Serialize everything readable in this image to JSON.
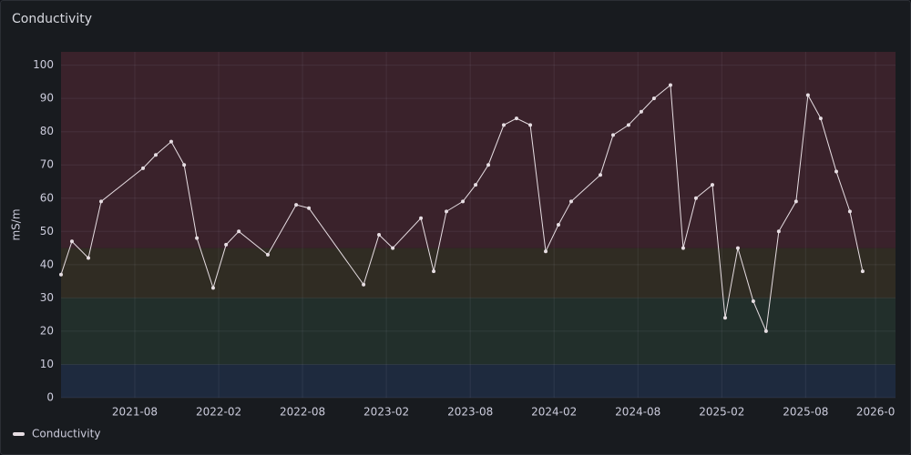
{
  "chart_data": {
    "type": "line",
    "title": "Conductivity",
    "y_label": "mS/m",
    "x": [
      2021.143,
      2021.208,
      2021.306,
      2021.382,
      2021.632,
      2021.708,
      2021.8,
      2021.877,
      2021.953,
      2022.05,
      2022.127,
      2022.203,
      2022.376,
      2022.545,
      2022.621,
      2022.947,
      2023.039,
      2023.121,
      2023.289,
      2023.365,
      2023.441,
      2023.539,
      2023.615,
      2023.691,
      2023.783,
      2023.859,
      2023.941,
      2024.033,
      2024.109,
      2024.185,
      2024.359,
      2024.435,
      2024.527,
      2024.603,
      2024.679,
      2024.777,
      2024.853,
      2024.929,
      2025.027,
      2025.103,
      2025.179,
      2025.271,
      2025.347,
      2025.423,
      2025.526,
      2025.597,
      2025.673,
      2025.766,
      2025.847,
      2025.923
    ],
    "series": [
      {
        "name": "Conductivity",
        "color": "#e6dde2",
        "values": [
          37,
          47,
          42,
          59,
          69,
          73,
          77,
          70,
          48,
          33,
          46,
          50,
          43,
          58,
          57,
          34,
          49,
          45,
          54,
          38,
          56,
          59,
          64,
          70,
          82,
          84,
          82,
          44,
          52,
          59,
          67,
          79,
          82,
          86,
          90,
          94,
          45,
          60,
          64,
          24,
          45,
          29,
          20,
          50,
          59,
          91,
          84,
          68,
          56,
          38
        ]
      }
    ],
    "xlim": [
      2021.143,
      2026.119
    ],
    "xticks": [
      {
        "value": 2021.583,
        "label": "2021-08"
      },
      {
        "value": 2022.083,
        "label": "2022-02"
      },
      {
        "value": 2022.583,
        "label": "2022-08"
      },
      {
        "value": 2023.083,
        "label": "2023-02"
      },
      {
        "value": 2023.583,
        "label": "2023-08"
      },
      {
        "value": 2024.083,
        "label": "2024-02"
      },
      {
        "value": 2024.583,
        "label": "2024-08"
      },
      {
        "value": 2025.083,
        "label": "2025-02"
      },
      {
        "value": 2025.583,
        "label": "2025-08"
      },
      {
        "value": 2026.0,
        "label": "2026-0"
      }
    ],
    "ylim": [
      0,
      104
    ],
    "yticks": [
      0,
      10,
      20,
      30,
      40,
      50,
      60,
      70,
      80,
      90,
      100
    ],
    "grid": true,
    "thresholds": [
      {
        "value": 0,
        "color": "#1e2a3e"
      },
      {
        "value": 10,
        "color": "#222f2b"
      },
      {
        "value": 30,
        "color": "#302c23"
      },
      {
        "value": 45,
        "color": "#3a222b"
      }
    ],
    "legend_position": "bottom-left"
  }
}
